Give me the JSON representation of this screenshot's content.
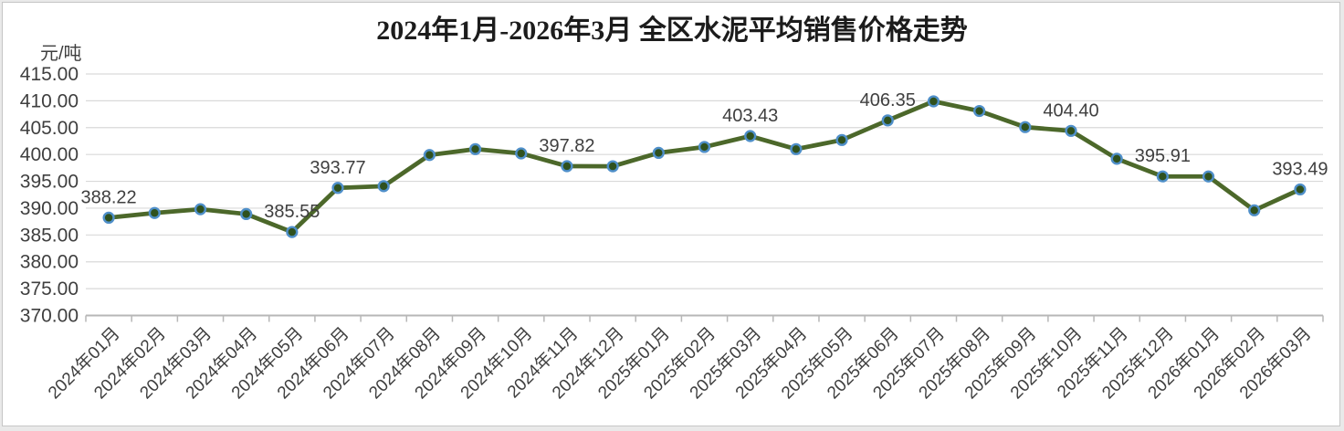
{
  "page": {
    "background": "#e9e9e9",
    "panel_background": "#ffffff",
    "panel_border": "#c6c6c6"
  },
  "chart_data": {
    "type": "line",
    "title": "2024年1月-2026年3月 全区水泥平均销售价格走势",
    "unit_label": "元/吨",
    "categories": [
      "2024年01月",
      "2024年02月",
      "2024年03月",
      "2024年04月",
      "2024年05月",
      "2024年06月",
      "2024年07月",
      "2024年08月",
      "2024年09月",
      "2024年10月",
      "2024年11月",
      "2024年12月",
      "2025年01月",
      "2025年02月",
      "2025年03月",
      "2025年04月",
      "2025年05月",
      "2025年06月",
      "2025年07月",
      "2025年08月",
      "2025年09月",
      "2025年10月",
      "2025年11月",
      "2025年12月",
      "2026年01月",
      "2026年02月",
      "2026年03月"
    ],
    "values": [
      388.22,
      389.1,
      389.8,
      388.9,
      385.55,
      393.77,
      394.1,
      399.9,
      401.0,
      400.2,
      397.82,
      397.8,
      400.3,
      401.4,
      403.43,
      401.0,
      402.7,
      406.35,
      409.9,
      408.1,
      405.1,
      404.4,
      399.2,
      395.91,
      395.9,
      389.6,
      393.49
    ],
    "point_labels": {
      "0": "388.22",
      "4": "385.55",
      "5": "393.77",
      "10": "397.82",
      "14": "403.43",
      "17": "406.35",
      "21": "404.40",
      "23": "395.91",
      "26": "393.49"
    },
    "ylim": [
      370,
      415
    ],
    "ytick_step": 5,
    "yticks": [
      "415.00",
      "410.00",
      "405.00",
      "400.00",
      "395.00",
      "390.00",
      "385.00",
      "380.00",
      "375.00",
      "370.00"
    ],
    "grid": true,
    "legend_position": "none",
    "xlabel": "",
    "ylabel": "",
    "colors": {
      "line": "#4c682a",
      "marker_fill": "#2f511e",
      "marker_ring": "#4f8fc9",
      "grid": "#d9d9d9",
      "axis": "#b7b7b7",
      "axis_text": "#3f3f3f",
      "title_text": "#1c1c1c"
    }
  }
}
